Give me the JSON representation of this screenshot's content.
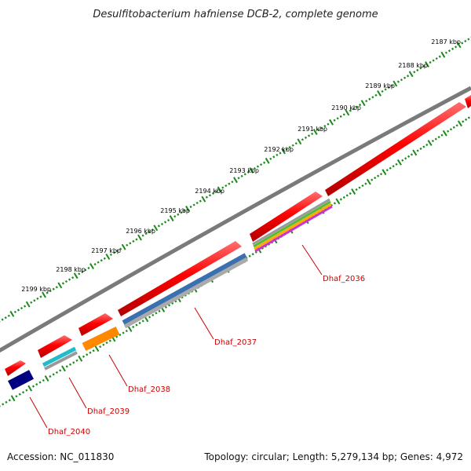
{
  "title": "Desulfitobacterium hafniense DCB-2, complete genome",
  "footer": {
    "accession": "Accession: NC_011830",
    "topology": "Topology: circular; Length: 5,279,134 bp; Genes: 4,972"
  },
  "colors": {
    "forward_gene": "#ff0000",
    "backbone": "#7a7a7a",
    "tick": "#1a8a1a",
    "label": "#cc0000"
  },
  "kbp_labels": [
    "2187 kbp",
    "2188 kbp",
    "2189 kbp",
    "2190 kbp",
    "2191 kbp",
    "2192 kbp",
    "2193 kbp",
    "2194 kbp",
    "2195 kbp",
    "2196 kbp",
    "2197 kbp",
    "2198 kbp",
    "2199 kbp"
  ],
  "genes": [
    {
      "name": "Dhaf_2036",
      "colors": [
        "#9a9a9a",
        "#55bb33",
        "#ffaa00",
        "#cc33cc"
      ]
    },
    {
      "name": "Dhaf_2037",
      "colors": [
        "#3a6fb0",
        "#aaaaaa"
      ]
    },
    {
      "name": "Dhaf_2038",
      "colors": [
        "#ff8800"
      ]
    },
    {
      "name": "Dhaf_2039",
      "colors": [
        "#22bbcc",
        "#999999"
      ]
    },
    {
      "name": "Dhaf_2040",
      "colors": [
        "#000080"
      ]
    }
  ]
}
